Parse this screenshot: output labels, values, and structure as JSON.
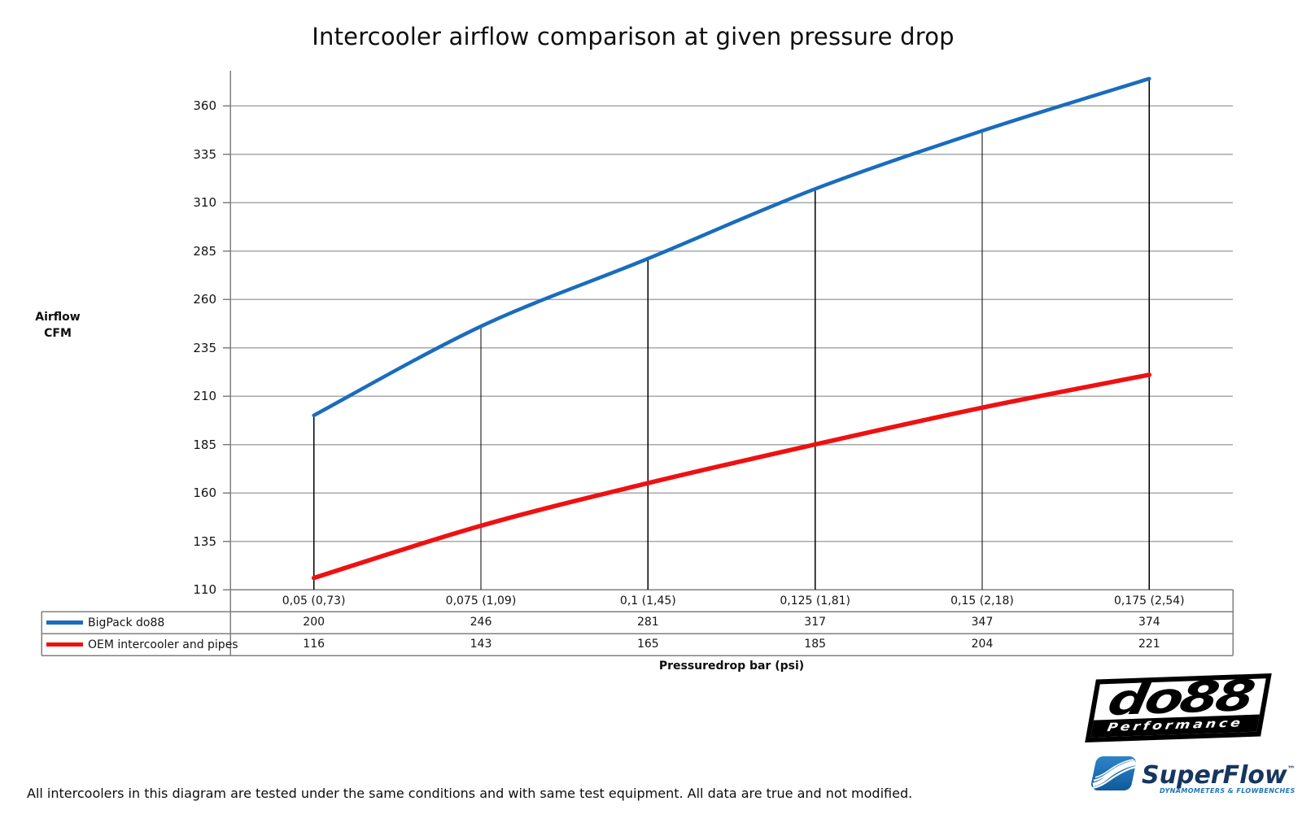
{
  "title": "Intercooler airflow comparison at given pressure drop",
  "y_axis": {
    "label_line1": "Airflow",
    "label_line2": "CFM"
  },
  "x_axis": {
    "label": "Pressuredrop bar (psi)"
  },
  "footer": "All intercoolers in this diagram are tested under the same conditions and with same test equipment. All data are true and not modified.",
  "chart_data": {
    "type": "line",
    "title": "Intercooler airflow comparison at given pressure drop",
    "xlabel": "Pressuredrop bar (psi)",
    "ylabel": "Airflow CFM",
    "categories": [
      "0,05 (0,73)",
      "0,075 (1,09)",
      "0,1 (1,45)",
      "0,125 (1,81)",
      "0,15 (2,18)",
      "0,175 (2,54)"
    ],
    "y_ticks": [
      110,
      135,
      160,
      185,
      210,
      235,
      260,
      285,
      310,
      335,
      360
    ],
    "ylim": [
      110,
      378
    ],
    "grid": true,
    "smoothed_lines": true,
    "drop_lines_from_series": "BigPack do88",
    "legend_position": "table-left",
    "series": [
      {
        "name": "BigPack do88",
        "color": "#1a6cbd",
        "line_width": 4.5,
        "values": [
          200,
          246,
          281,
          317,
          347,
          374
        ]
      },
      {
        "name": "OEM intercooler and pipes",
        "color": "#ee1111",
        "line_width": 5.5,
        "values": [
          116,
          143,
          165,
          185,
          204,
          221
        ]
      }
    ]
  },
  "colors": {
    "gridline": "#a8a8a8",
    "axis_and_table_border": "#7f7f7f",
    "drop_line": "#000000",
    "superflow_navy": "#16365f",
    "superflow_blue": "#1f74b8"
  },
  "logos": {
    "do88": {
      "text": "do88",
      "subtext": "Performance"
    },
    "superflow": {
      "text": "SuperFlow",
      "trademark": "™",
      "subtext": "DYNAMOMETERS & FLOWBENCHES"
    }
  }
}
